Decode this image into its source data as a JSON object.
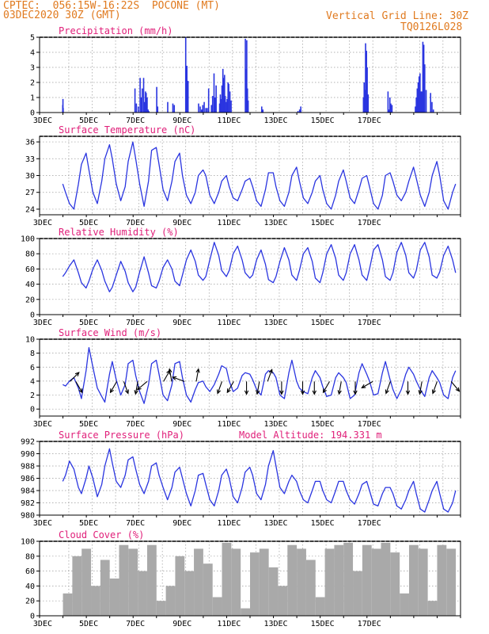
{
  "header": {
    "line1": "CPTEC:  056:15W-16:22S  POCONE (MT)",
    "line2": "03DEC2020 30Z (GMT)",
    "grid_note": "Vertical Grid Line: 30Z",
    "code": "TQ0126L028"
  },
  "colors": {
    "header": "#e07a1f",
    "title": "#e0207a",
    "series": "#2a35e0",
    "cloud": "#a9a9a9"
  },
  "chart_data": [
    {
      "id": "precip",
      "type": "bar",
      "title": "Precipitation (mm/h)",
      "ylim": [
        0,
        5
      ],
      "yticks": [
        0,
        1,
        2,
        3,
        4,
        5
      ],
      "x_ticklabels": [
        "3DEC",
        "5DEC",
        "7DEC",
        "9DEC",
        "11DEC",
        "13DEC",
        "15DEC",
        "17DEC"
      ],
      "x_unit": "day offset from 03DEC 00Z",
      "x": [
        0.99,
        1.0,
        1.01,
        4.08,
        4.14,
        4.22,
        4.3,
        4.35,
        4.39,
        4.45,
        4.49,
        4.53,
        4.56,
        4.6,
        4.64,
        4.67,
        5.01,
        5.05,
        5.48,
        5.7,
        5.76,
        6.25,
        6.3,
        6.35,
        6.8,
        6.87,
        6.93,
        6.98,
        7.04,
        7.11,
        7.17,
        7.23,
        7.35,
        7.4,
        7.46,
        7.5,
        7.55,
        7.7,
        7.73,
        7.77,
        7.8,
        7.84,
        7.87,
        7.91,
        7.94,
        7.99,
        8.02,
        8.06,
        8.09,
        8.14,
        8.19,
        8.8,
        8.83,
        8.86,
        8.89,
        8.92,
        9.5,
        9.55,
        11.05,
        11.12,
        11.17,
        13.85,
        13.88,
        13.91,
        13.94,
        13.98,
        14.01,
        14.05,
        14.9,
        14.94,
        14.98,
        15.02,
        15.07,
        16.07,
        16.11,
        16.15,
        16.19,
        16.23,
        16.27,
        16.31,
        16.35,
        16.39,
        16.43,
        16.47,
        16.53,
        16.72,
        16.78,
        16.84
      ],
      "values": [
        0.5,
        0.9,
        0.3,
        1.6,
        0.6,
        0.4,
        2.3,
        1.0,
        1.6,
        2.3,
        0.7,
        1.4,
        1.3,
        1.0,
        0.2,
        0.1,
        1.7,
        0.4,
        0.7,
        0.6,
        0.5,
        5.0,
        3.1,
        2.1,
        0.6,
        0.4,
        0.2,
        0.5,
        0.7,
        0.3,
        0.3,
        1.6,
        0.5,
        1.1,
        2.6,
        1.0,
        1.8,
        0.6,
        1.2,
        0.9,
        1.8,
        2.9,
        2.3,
        2.5,
        1.1,
        0.7,
        0.9,
        2.0,
        1.9,
        1.4,
        0.8,
        4.9,
        2.9,
        4.8,
        1.6,
        0.8,
        0.4,
        0.2,
        0.1,
        0.2,
        0.4,
        1.0,
        2.0,
        1.5,
        4.6,
        4.1,
        3.0,
        1.2,
        1.4,
        0.2,
        1.0,
        0.6,
        0.5,
        0.4,
        1.0,
        1.6,
        2.0,
        2.4,
        2.6,
        1.4,
        1.4,
        4.7,
        4.5,
        3.2,
        1.5,
        1.3,
        0.7,
        0.2
      ]
    },
    {
      "id": "temperature",
      "type": "line",
      "title": "Surface Temperature (nC)",
      "ylim": [
        23,
        37
      ],
      "yticks": [
        24,
        27,
        30,
        33,
        36
      ],
      "x_ticklabels": [
        "3DEC",
        "5DEC",
        "7DEC",
        "9DEC",
        "11DEC",
        "13DEC",
        "15DEC",
        "17DEC"
      ],
      "x": [
        0.99,
        1.11,
        1.28,
        1.47,
        1.66,
        1.79,
        1.99,
        2.11,
        2.28,
        2.47,
        2.66,
        2.79,
        2.99,
        3.11,
        3.28,
        3.47,
        3.66,
        3.79,
        3.99,
        4.11,
        4.28,
        4.47,
        4.66,
        4.79,
        4.99,
        5.11,
        5.28,
        5.47,
        5.66,
        5.79,
        5.99,
        6.11,
        6.28,
        6.47,
        6.66,
        6.79,
        6.99,
        7.11,
        7.28,
        7.47,
        7.66,
        7.79,
        7.99,
        8.11,
        8.28,
        8.47,
        8.66,
        8.79,
        8.99,
        9.11,
        9.28,
        9.47,
        9.66,
        9.79,
        9.99,
        10.11,
        10.28,
        10.47,
        10.66,
        10.79,
        10.99,
        11.11,
        11.28,
        11.47,
        11.66,
        11.79,
        11.99,
        12.11,
        12.28,
        12.47,
        12.66,
        12.79,
        12.99,
        13.11,
        13.28,
        13.47,
        13.66,
        13.79,
        13.99,
        14.11,
        14.28,
        14.47,
        14.66,
        14.79,
        14.99,
        15.11,
        15.28,
        15.47,
        15.66,
        15.79,
        15.99,
        16.11,
        16.28,
        16.47,
        16.66,
        16.79,
        16.99,
        17.11,
        17.28,
        17.47,
        17.66,
        17.79
      ],
      "values": [
        28.5,
        27.0,
        25.0,
        24.0,
        28.5,
        32.0,
        34.0,
        31.0,
        27.0,
        25.0,
        29.0,
        33.0,
        35.5,
        33.0,
        28.5,
        25.5,
        28.0,
        32.5,
        36.0,
        33.0,
        28.5,
        24.5,
        29.0,
        34.5,
        35.0,
        32.0,
        27.5,
        25.5,
        29.0,
        32.5,
        34.0,
        30.0,
        26.5,
        25.0,
        27.0,
        30.0,
        31.0,
        30.0,
        26.5,
        25.0,
        27.0,
        29.0,
        30.0,
        28.0,
        26.0,
        25.5,
        27.5,
        29.0,
        29.5,
        28.0,
        25.5,
        24.5,
        27.5,
        30.5,
        30.5,
        28.0,
        25.5,
        24.5,
        27.0,
        30.0,
        31.5,
        29.0,
        26.0,
        25.0,
        27.0,
        29.0,
        30.0,
        27.5,
        25.0,
        24.0,
        26.5,
        29.0,
        31.0,
        29.0,
        26.0,
        25.0,
        27.5,
        29.5,
        30.0,
        28.0,
        25.0,
        24.0,
        26.5,
        30.0,
        30.5,
        29.0,
        26.5,
        25.5,
        27.0,
        29.0,
        31.5,
        29.5,
        26.5,
        24.5,
        27.0,
        30.0,
        32.5,
        30.0,
        25.5,
        24.0,
        27.0,
        28.5
      ]
    },
    {
      "id": "humidity",
      "type": "line",
      "title": "Relative Humidity (%)",
      "ylim": [
        0,
        100
      ],
      "yticks": [
        0,
        20,
        40,
        60,
        80,
        100
      ],
      "x_ticklabels": [
        "3DEC",
        "5DEC",
        "7DEC",
        "9DEC",
        "11DEC",
        "13DEC",
        "15DEC",
        "17DEC"
      ],
      "x": [
        0.99,
        1.11,
        1.28,
        1.47,
        1.66,
        1.79,
        1.99,
        2.11,
        2.28,
        2.47,
        2.66,
        2.79,
        2.99,
        3.11,
        3.28,
        3.47,
        3.66,
        3.79,
        3.99,
        4.11,
        4.28,
        4.47,
        4.66,
        4.79,
        4.99,
        5.11,
        5.28,
        5.47,
        5.66,
        5.79,
        5.99,
        6.11,
        6.28,
        6.47,
        6.66,
        6.79,
        6.99,
        7.11,
        7.28,
        7.47,
        7.66,
        7.79,
        7.99,
        8.11,
        8.28,
        8.47,
        8.66,
        8.79,
        8.99,
        9.11,
        9.28,
        9.47,
        9.66,
        9.79,
        9.99,
        10.11,
        10.28,
        10.47,
        10.66,
        10.79,
        10.99,
        11.11,
        11.28,
        11.47,
        11.66,
        11.79,
        11.99,
        12.11,
        12.28,
        12.47,
        12.66,
        12.79,
        12.99,
        13.11,
        13.28,
        13.47,
        13.66,
        13.79,
        13.99,
        14.11,
        14.28,
        14.47,
        14.66,
        14.79,
        14.99,
        15.11,
        15.28,
        15.47,
        15.66,
        15.79,
        15.99,
        16.11,
        16.28,
        16.47,
        16.66,
        16.79,
        16.99,
        17.11,
        17.28,
        17.47,
        17.66,
        17.79
      ],
      "values": [
        50.0,
        55.0,
        64.0,
        72.0,
        55.0,
        42.0,
        35.0,
        44.0,
        60.0,
        72.0,
        58.0,
        44.0,
        30.0,
        36.0,
        52.0,
        70.0,
        57.0,
        42.0,
        30.0,
        36.0,
        56.0,
        76.0,
        55.0,
        38.0,
        35.0,
        44.0,
        62.0,
        72.0,
        60.0,
        44.0,
        38.0,
        52.0,
        72.0,
        85.0,
        70.0,
        52.0,
        45.0,
        50.0,
        72.0,
        95.0,
        78.0,
        58.0,
        50.0,
        58.0,
        80.0,
        90.0,
        72.0,
        55.0,
        48.0,
        52.0,
        72.0,
        85.0,
        66.0,
        46.0,
        42.0,
        50.0,
        70.0,
        88.0,
        72.0,
        52.0,
        45.0,
        58.0,
        80.0,
        88.0,
        70.0,
        48.0,
        42.0,
        55.0,
        80.0,
        92.0,
        74.0,
        52.0,
        45.0,
        55.0,
        80.0,
        92.0,
        72.0,
        52.0,
        45.0,
        60.0,
        85.0,
        92.0,
        72.0,
        50.0,
        45.0,
        55.0,
        82.0,
        95.0,
        78.0,
        55.0,
        48.0,
        58.0,
        85.0,
        95.0,
        76.0,
        52.0,
        48.0,
        56.0,
        78.0,
        90.0,
        72.0,
        55.0
      ]
    },
    {
      "id": "wind",
      "type": "line",
      "title": "Surface Wind (m/s)",
      "ylim": [
        -1,
        10
      ],
      "yticks": [
        0,
        2,
        4,
        6,
        8,
        10
      ],
      "x_ticklabels": [
        "3DEC",
        "5DEC",
        "7DEC",
        "9DEC",
        "11DEC",
        "13DEC",
        "15DEC",
        "17DEC"
      ],
      "x": [
        0.99,
        1.11,
        1.28,
        1.47,
        1.66,
        1.79,
        1.99,
        2.11,
        2.28,
        2.47,
        2.66,
        2.79,
        2.99,
        3.11,
        3.28,
        3.47,
        3.66,
        3.79,
        3.99,
        4.11,
        4.28,
        4.47,
        4.66,
        4.79,
        4.99,
        5.11,
        5.28,
        5.47,
        5.66,
        5.79,
        5.99,
        6.11,
        6.28,
        6.47,
        6.66,
        6.79,
        6.99,
        7.11,
        7.28,
        7.47,
        7.66,
        7.79,
        7.99,
        8.11,
        8.28,
        8.47,
        8.66,
        8.79,
        8.99,
        9.11,
        9.28,
        9.47,
        9.66,
        9.79,
        9.99,
        10.11,
        10.28,
        10.47,
        10.66,
        10.79,
        10.99,
        11.11,
        11.28,
        11.47,
        11.66,
        11.79,
        11.99,
        12.11,
        12.28,
        12.47,
        12.66,
        12.79,
        12.99,
        13.11,
        13.28,
        13.47,
        13.66,
        13.79,
        13.99,
        14.11,
        14.28,
        14.47,
        14.66,
        14.79,
        14.99,
        15.11,
        15.28,
        15.47,
        15.66,
        15.79,
        15.99,
        16.11,
        16.28,
        16.47,
        16.66,
        16.79,
        16.99,
        17.11,
        17.28,
        17.47,
        17.66,
        17.79
      ],
      "values": [
        3.5,
        3.3,
        4.0,
        4.5,
        3.0,
        1.5,
        5.5,
        8.8,
        6.0,
        3.0,
        1.8,
        1.0,
        5.0,
        6.8,
        4.2,
        2.0,
        3.5,
        6.5,
        7.0,
        4.8,
        2.5,
        0.8,
        3.5,
        6.5,
        7.0,
        5.0,
        2.0,
        1.2,
        3.5,
        6.5,
        6.8,
        4.5,
        2.0,
        1.0,
        2.8,
        3.8,
        4.0,
        3.2,
        2.5,
        3.5,
        5.0,
        6.2,
        5.8,
        4.0,
        2.5,
        3.0,
        4.8,
        5.2,
        5.0,
        4.2,
        2.8,
        2.0,
        5.0,
        5.5,
        5.2,
        4.5,
        2.0,
        1.5,
        5.2,
        7.0,
        4.0,
        3.0,
        2.5,
        2.2,
        4.5,
        5.5,
        4.5,
        3.2,
        1.8,
        2.0,
        4.5,
        5.2,
        4.5,
        3.8,
        1.5,
        2.0,
        5.2,
        6.5,
        5.0,
        4.0,
        2.0,
        2.2,
        5.2,
        6.8,
        4.2,
        2.8,
        1.5,
        2.8,
        5.0,
        6.0,
        5.0,
        4.0,
        2.8,
        1.8,
        4.5,
        5.5,
        4.5,
        3.8,
        2.0,
        1.5,
        4.5,
        5.5
      ]
    },
    {
      "id": "pressure",
      "type": "line",
      "title": "Surface Pressure (hPa)",
      "annotation": "Model Altitude: 194.331 m",
      "ylim": [
        980,
        992
      ],
      "yticks": [
        980,
        982,
        984,
        986,
        988,
        990,
        992
      ],
      "x_ticklabels": [
        "3DEC",
        "5DEC",
        "7DEC",
        "9DEC",
        "11DEC",
        "13DEC",
        "15DEC",
        "17DEC"
      ],
      "x": [
        0.99,
        1.11,
        1.28,
        1.47,
        1.66,
        1.79,
        1.99,
        2.11,
        2.28,
        2.47,
        2.66,
        2.79,
        2.99,
        3.11,
        3.28,
        3.47,
        3.66,
        3.79,
        3.99,
        4.11,
        4.28,
        4.47,
        4.66,
        4.79,
        4.99,
        5.11,
        5.28,
        5.47,
        5.66,
        5.79,
        5.99,
        6.11,
        6.28,
        6.47,
        6.66,
        6.79,
        6.99,
        7.11,
        7.28,
        7.47,
        7.66,
        7.79,
        7.99,
        8.11,
        8.28,
        8.47,
        8.66,
        8.79,
        8.99,
        9.11,
        9.28,
        9.47,
        9.66,
        9.79,
        9.99,
        10.11,
        10.28,
        10.47,
        10.66,
        10.79,
        10.99,
        11.11,
        11.28,
        11.47,
        11.66,
        11.79,
        11.99,
        12.11,
        12.28,
        12.47,
        12.66,
        12.79,
        12.99,
        13.11,
        13.28,
        13.47,
        13.66,
        13.79,
        13.99,
        14.11,
        14.28,
        14.47,
        14.66,
        14.79,
        14.99,
        15.11,
        15.28,
        15.47,
        15.66,
        15.79,
        15.99,
        16.11,
        16.28,
        16.47,
        16.66,
        16.79,
        16.99,
        17.11,
        17.28,
        17.47,
        17.66,
        17.79
      ],
      "values": [
        985.5,
        986.5,
        988.8,
        987.5,
        984.5,
        983.5,
        986.0,
        988.0,
        986.0,
        983.0,
        985.0,
        988.0,
        990.8,
        988.5,
        985.5,
        984.5,
        986.5,
        989.0,
        989.5,
        987.5,
        985.0,
        983.5,
        985.5,
        988.0,
        988.5,
        986.5,
        984.5,
        982.5,
        984.5,
        987.0,
        987.8,
        986.0,
        983.5,
        981.5,
        984.0,
        986.5,
        986.8,
        985.0,
        982.5,
        981.5,
        984.0,
        986.5,
        987.5,
        986.0,
        983.0,
        982.0,
        984.5,
        987.0,
        987.8,
        986.5,
        983.5,
        982.5,
        985.0,
        988.0,
        990.5,
        988.0,
        984.5,
        983.5,
        985.5,
        986.5,
        985.5,
        984.0,
        982.5,
        982.0,
        984.0,
        985.5,
        985.5,
        984.0,
        982.5,
        982.0,
        984.0,
        985.5,
        985.5,
        984.0,
        982.5,
        981.8,
        983.5,
        985.0,
        985.5,
        984.0,
        981.8,
        981.5,
        983.5,
        984.5,
        984.5,
        983.5,
        981.5,
        981.0,
        982.5,
        984.0,
        985.5,
        983.5,
        981.0,
        980.5,
        982.5,
        984.0,
        985.5,
        983.5,
        981.0,
        980.5,
        982.0,
        984.0
      ]
    },
    {
      "id": "cloud",
      "type": "bar",
      "title": "Cloud Cover (%)",
      "ylim": [
        0,
        100
      ],
      "yticks": [
        0,
        20,
        40,
        60,
        80,
        100
      ],
      "x_ticklabels": [
        "3DEC",
        "5DEC",
        "7DEC",
        "9DEC",
        "11DEC",
        "13DEC",
        "15DEC",
        "17DEC"
      ],
      "x": [
        1.2,
        1.6,
        2.0,
        2.4,
        2.8,
        3.2,
        3.6,
        4.0,
        4.4,
        4.8,
        5.2,
        5.6,
        6.0,
        6.4,
        6.8,
        7.2,
        7.6,
        8.0,
        8.4,
        8.8,
        9.2,
        9.6,
        10.0,
        10.4,
        10.8,
        11.2,
        11.6,
        12.0,
        12.4,
        12.8,
        13.2,
        13.6,
        14.0,
        14.4,
        14.8,
        15.2,
        15.6,
        16.0,
        16.4,
        16.8,
        17.2,
        17.6
      ],
      "values": [
        30,
        80,
        90,
        40,
        75,
        50,
        95,
        90,
        60,
        95,
        20,
        40,
        80,
        60,
        90,
        70,
        25,
        98,
        90,
        10,
        85,
        90,
        65,
        40,
        95,
        90,
        75,
        25,
        90,
        95,
        98,
        60,
        95,
        90,
        98,
        85,
        30,
        95,
        90,
        20,
        95,
        90
      ]
    }
  ]
}
